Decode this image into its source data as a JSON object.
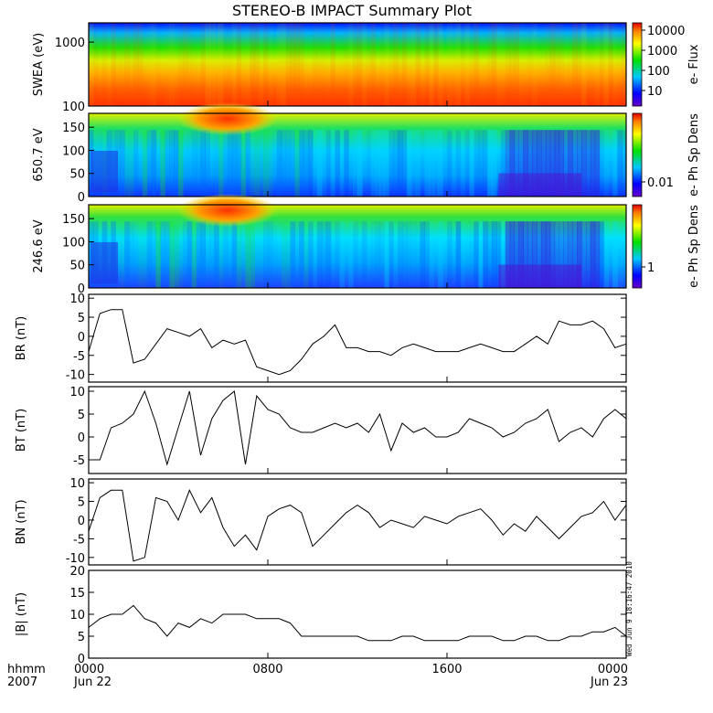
{
  "title": "STEREO-B IMPACT Summary Plot",
  "stamp": "Wed Jun  9 18:16:47 2010",
  "chart_data": [
    {
      "type": "heatmap",
      "ylabel": "SWEA (eV)",
      "yscale": "log",
      "ylim": [
        100,
        2000
      ],
      "ytick_labels": [
        "1000",
        "100"
      ],
      "colorbar_label": "e- Flux",
      "colorbar_ticks": [
        "10000",
        "1000",
        "100",
        "10"
      ]
    },
    {
      "type": "heatmap",
      "ylabel": "650.7 eV",
      "ylim": [
        0,
        180
      ],
      "ytick_labels": [
        "150",
        "100",
        "50",
        "0"
      ],
      "colorbar_label": "e- Ph Sp Dens",
      "colorbar_ticks": [
        "0.01"
      ]
    },
    {
      "type": "heatmap",
      "ylabel": "246.6 eV",
      "ylim": [
        0,
        180
      ],
      "ytick_labels": [
        "150",
        "100",
        "50",
        "0"
      ],
      "colorbar_label": "e- Ph Sp Dens",
      "colorbar_ticks": [
        "1"
      ]
    },
    {
      "type": "line",
      "ylabel": "BR (nT)",
      "ylim": [
        -12,
        11
      ],
      "ytick_labels": [
        "10",
        "5",
        "0",
        "-5",
        "-10"
      ],
      "x": [
        0,
        0.5,
        1,
        1.5,
        2,
        2.5,
        3,
        3.5,
        4,
        4.5,
        5,
        5.5,
        6,
        6.5,
        7,
        7.5,
        8,
        8.5,
        9,
        9.5,
        10,
        10.5,
        11,
        11.5,
        12,
        12.5,
        13,
        13.5,
        14,
        14.5,
        15,
        15.5,
        16,
        16.5,
        17,
        17.5,
        18,
        18.5,
        19,
        19.5,
        20,
        20.5,
        21,
        21.5,
        22,
        22.5,
        23,
        23.5,
        24
      ],
      "y": [
        -4,
        6,
        7,
        7,
        -7,
        -6,
        -2,
        2,
        1,
        0,
        2,
        -3,
        -1,
        -2,
        -1,
        -8,
        -9,
        -10,
        -9,
        -6,
        -2,
        0,
        3,
        -3,
        -3,
        -4,
        -4,
        -5,
        -3,
        -2,
        -3,
        -4,
        -4,
        -4,
        -3,
        -2,
        -3,
        -4,
        -4,
        -2,
        0,
        -2,
        4,
        3,
        3,
        4,
        2,
        -3,
        -2
      ]
    },
    {
      "type": "line",
      "ylabel": "BT (nT)",
      "ylim": [
        -8,
        11
      ],
      "ytick_labels": [
        "10",
        "5",
        "0",
        "-5"
      ],
      "x": [
        0,
        0.5,
        1,
        1.5,
        2,
        2.5,
        3,
        3.5,
        4,
        4.5,
        5,
        5.5,
        6,
        6.5,
        7,
        7.5,
        8,
        8.5,
        9,
        9.5,
        10,
        10.5,
        11,
        11.5,
        12,
        12.5,
        13,
        13.5,
        14,
        14.5,
        15,
        15.5,
        16,
        16.5,
        17,
        17.5,
        18,
        18.5,
        19,
        19.5,
        20,
        20.5,
        21,
        21.5,
        22,
        22.5,
        23,
        23.5,
        24
      ],
      "y": [
        -5,
        -5,
        2,
        3,
        5,
        10,
        3,
        -6,
        2,
        10,
        -4,
        4,
        8,
        10,
        -6,
        9,
        6,
        5,
        2,
        1,
        1,
        2,
        3,
        2,
        3,
        1,
        5,
        -3,
        3,
        1,
        2,
        0,
        0,
        1,
        4,
        3,
        2,
        0,
        1,
        3,
        4,
        6,
        -1,
        1,
        2,
        0,
        4,
        6,
        4
      ]
    },
    {
      "type": "line",
      "ylabel": "BN (nT)",
      "ylim": [
        -12,
        11
      ],
      "ytick_labels": [
        "10",
        "5",
        "0",
        "-5",
        "-10"
      ],
      "x": [
        0,
        0.5,
        1,
        1.5,
        2,
        2.5,
        3,
        3.5,
        4,
        4.5,
        5,
        5.5,
        6,
        6.5,
        7,
        7.5,
        8,
        8.5,
        9,
        9.5,
        10,
        10.5,
        11,
        11.5,
        12,
        12.5,
        13,
        13.5,
        14,
        14.5,
        15,
        15.5,
        16,
        16.5,
        17,
        17.5,
        18,
        18.5,
        19,
        19.5,
        20,
        20.5,
        21,
        21.5,
        22,
        22.5,
        23,
        23.5,
        24
      ],
      "y": [
        -3,
        6,
        8,
        8,
        -11,
        -10,
        6,
        5,
        0,
        8,
        2,
        6,
        -2,
        -7,
        -4,
        -8,
        1,
        3,
        4,
        2,
        -7,
        -4,
        -1,
        2,
        4,
        2,
        -2,
        0,
        -1,
        -2,
        1,
        0,
        -1,
        1,
        2,
        3,
        0,
        -4,
        -1,
        -3,
        1,
        -2,
        -5,
        -2,
        1,
        2,
        5,
        0,
        4
      ]
    },
    {
      "type": "line",
      "ylabel": "|B| (nT)",
      "ylim": [
        0,
        20
      ],
      "ytick_labels": [
        "20",
        "15",
        "10",
        "5",
        "0"
      ],
      "x": [
        0,
        0.5,
        1,
        1.5,
        2,
        2.5,
        3,
        3.5,
        4,
        4.5,
        5,
        5.5,
        6,
        6.5,
        7,
        7.5,
        8,
        8.5,
        9,
        9.5,
        10,
        10.5,
        11,
        11.5,
        12,
        12.5,
        13,
        13.5,
        14,
        14.5,
        15,
        15.5,
        16,
        16.5,
        17,
        17.5,
        18,
        18.5,
        19,
        19.5,
        20,
        20.5,
        21,
        21.5,
        22,
        22.5,
        23,
        23.5,
        24
      ],
      "y": [
        7,
        9,
        10,
        10,
        12,
        9,
        8,
        5,
        8,
        7,
        9,
        8,
        10,
        10,
        10,
        9,
        9,
        9,
        8,
        5,
        5,
        5,
        5,
        5,
        5,
        4,
        4,
        4,
        5,
        5,
        4,
        4,
        4,
        4,
        5,
        5,
        5,
        4,
        4,
        5,
        5,
        4,
        4,
        5,
        5,
        6,
        6,
        7,
        5
      ]
    }
  ],
  "xaxis": {
    "hhmm_label": "hhmm",
    "year_label": "2007",
    "ticks": [
      {
        "hour": 0,
        "time": "0000",
        "date": "Jun 22"
      },
      {
        "hour": 8,
        "time": "0800",
        "date": ""
      },
      {
        "hour": 16,
        "time": "1600",
        "date": ""
      },
      {
        "hour": 24,
        "time": "0000",
        "date": "Jun 23"
      }
    ]
  }
}
